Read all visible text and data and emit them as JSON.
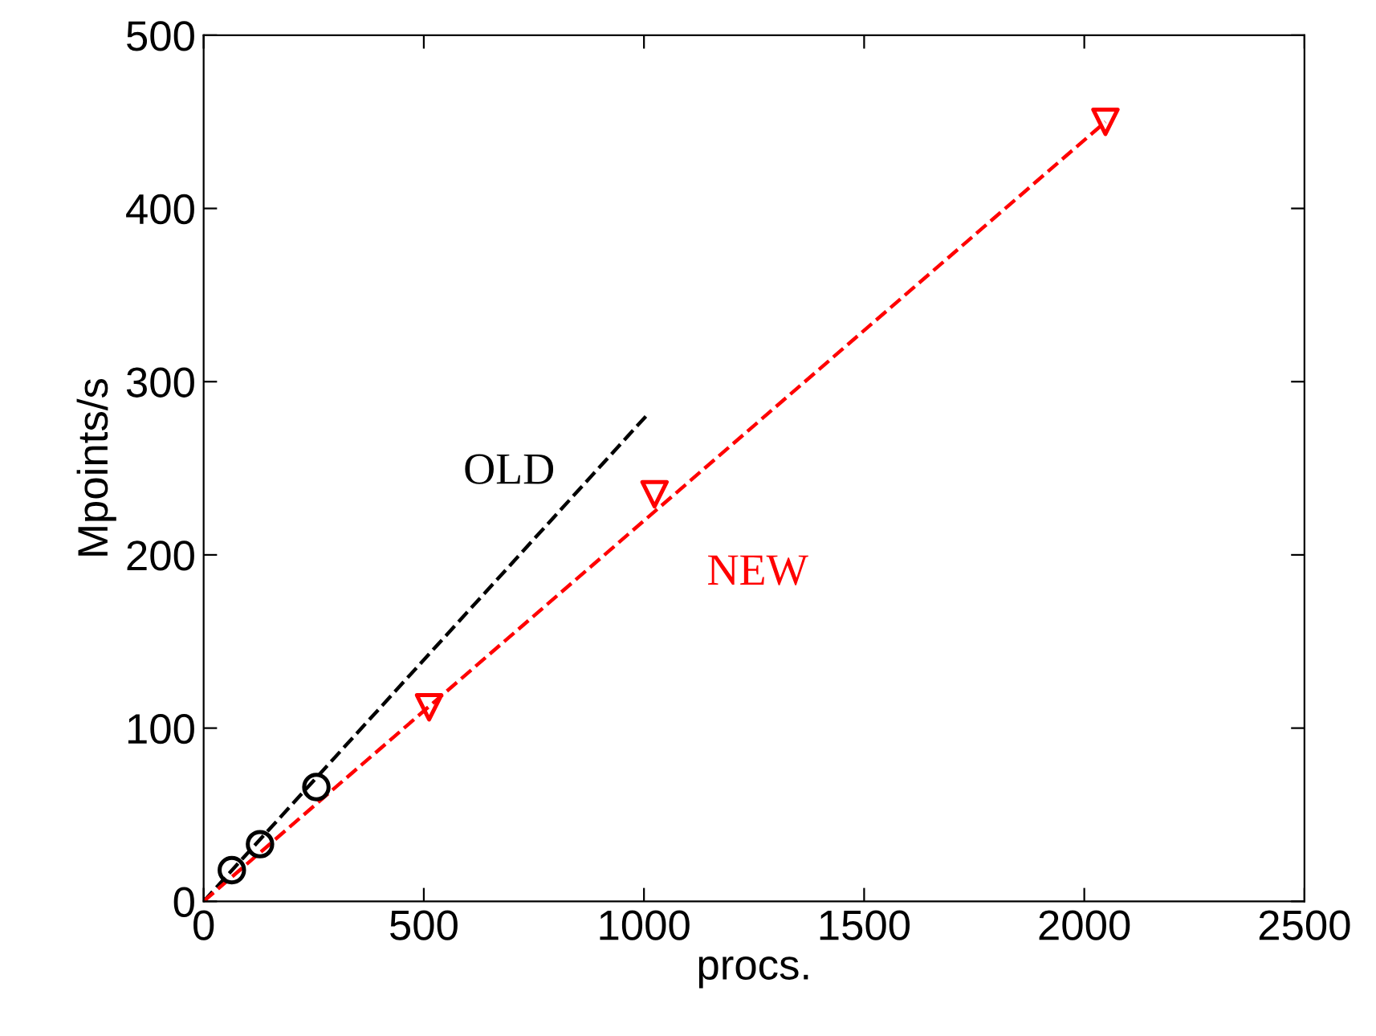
{
  "chart_data": {
    "type": "scatter",
    "xlabel": "procs.",
    "ylabel": "Mpoints/s",
    "xlim": [
      0,
      2500
    ],
    "ylim": [
      0,
      500
    ],
    "xticks": [
      0,
      500,
      1000,
      1500,
      2000,
      2500
    ],
    "yticks": [
      0,
      100,
      200,
      300,
      400,
      500
    ],
    "grid": false,
    "legend": false,
    "series": [
      {
        "type": "line",
        "name": "OLD",
        "color": "#000000",
        "line_style": "dashed",
        "marker": "none",
        "x": [
          0,
          1008
        ],
        "values": [
          0,
          281
        ]
      },
      {
        "type": "line",
        "name": "NEW",
        "color": "#ff0000",
        "line_style": "dashed",
        "marker": "none",
        "x": [
          0,
          2048
        ],
        "values": [
          0,
          450
        ]
      },
      {
        "color": "#000000",
        "marker": "circle",
        "x": [
          64,
          128,
          256
        ],
        "values": [
          18,
          33,
          66
        ]
      },
      {
        "color": "#ff0000",
        "marker": "triangle",
        "x": [
          512,
          1024,
          2048
        ],
        "values": [
          112,
          235,
          450
        ]
      }
    ]
  }
}
